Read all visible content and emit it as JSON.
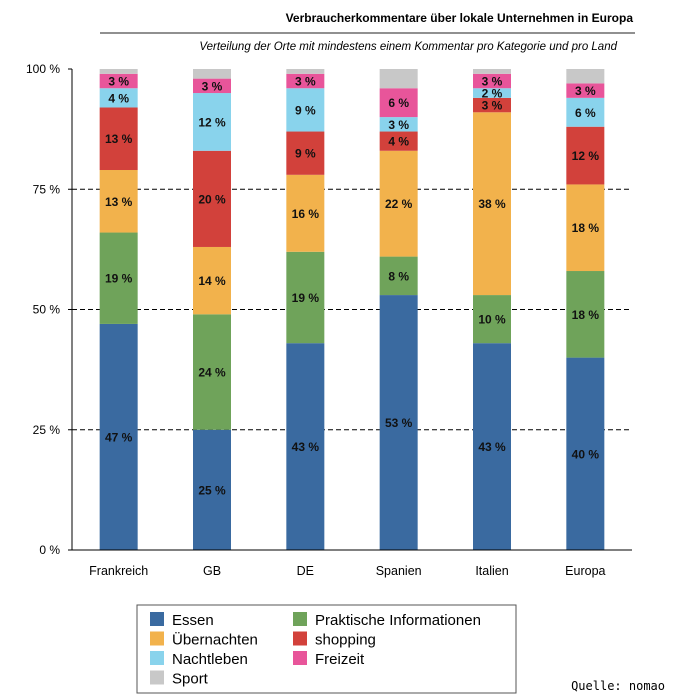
{
  "chart_data": {
    "type": "bar",
    "stacked": true,
    "title": "Verbraucherkommentare über lokale Unternehmen in Europa",
    "subtitle": "Verteilung der Orte mit mindestens einem Kommentar pro Kategorie und pro Land",
    "source": "Quelle: nomao",
    "categories": [
      "Frankreich",
      "GB",
      "DE",
      "Spanien",
      "Italien",
      "Europa"
    ],
    "ylim": [
      0,
      100
    ],
    "yticks": [
      0,
      25,
      50,
      75,
      100
    ],
    "ytick_labels": [
      "0 %",
      "25 %",
      "50 %",
      "75 %",
      "100 %"
    ],
    "series": [
      {
        "name": "Essen",
        "color": "#3a6aa0",
        "values": [
          47,
          25,
          43,
          53,
          43,
          40
        ],
        "labels": [
          "47 %",
          "25 %",
          "43 %",
          "53 %",
          "43 %",
          "40 %"
        ]
      },
      {
        "name": "Praktische Informationen",
        "color": "#6fa35a",
        "values": [
          19,
          24,
          19,
          8,
          10,
          18
        ],
        "labels": [
          "19 %",
          "24 %",
          "19 %",
          "8 %",
          "10 %",
          "18 %"
        ]
      },
      {
        "name": "Übernachten",
        "color": "#f2b24c",
        "values": [
          13,
          14,
          16,
          22,
          38,
          18
        ],
        "labels": [
          "13 %",
          "14 %",
          "16 %",
          "22 %",
          "38 %",
          "18 %"
        ]
      },
      {
        "name": "shopping",
        "color": "#d2413b",
        "values": [
          13,
          20,
          9,
          4,
          3,
          12
        ],
        "labels": [
          "13 %",
          "20 %",
          "9 %",
          "4 %",
          "3 %",
          "12 %"
        ]
      },
      {
        "name": "Nachtleben",
        "color": "#89d3ec",
        "values": [
          4,
          12,
          9,
          3,
          2,
          6
        ],
        "labels": [
          "4 %",
          "12 %",
          "9 %",
          "3 %",
          "2 %",
          "6 %"
        ]
      },
      {
        "name": "Freizeit",
        "color": "#e8559a",
        "values": [
          3,
          3,
          3,
          6,
          3,
          3
        ],
        "labels": [
          "3 %",
          "3 %",
          "3 %",
          "6 %",
          "3 %",
          "3 %"
        ]
      },
      {
        "name": "Sport",
        "color": "#c8c8c8",
        "values": [
          1,
          2,
          1,
          4,
          1,
          3
        ],
        "labels": null
      }
    ],
    "legend": {
      "rows": [
        [
          "Essen",
          "Praktische Informationen"
        ],
        [
          "Übernachten",
          "shopping"
        ],
        [
          "Nachtleben",
          "Freizeit"
        ],
        [
          "Sport",
          null
        ]
      ]
    }
  }
}
